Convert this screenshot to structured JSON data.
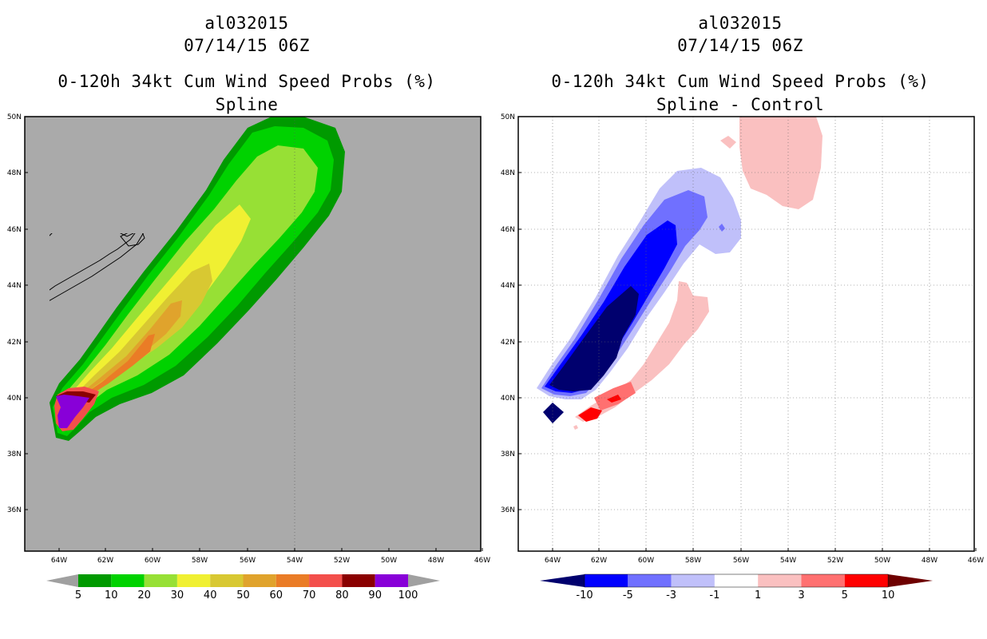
{
  "left_panel": {
    "title_line1": "al032015",
    "title_line2": "07/14/15 06Z",
    "title_line3": "0-120h 34kt Cum Wind Speed Probs (%)",
    "title_line4": "Spline"
  },
  "right_panel": {
    "title_line1": "al032015",
    "title_line2": "07/14/15 06Z",
    "title_line3": "0-120h 34kt Cum Wind Speed Probs (%)",
    "title_line4": "Spline - Control"
  },
  "axes": {
    "lat_labels": [
      "50N",
      "48N",
      "46N",
      "44N",
      "42N",
      "40N",
      "38N",
      "36N"
    ],
    "lon_labels": [
      "64W",
      "62W",
      "60W",
      "58W",
      "56W",
      "54W",
      "52W",
      "50W",
      "48W",
      "46W"
    ]
  },
  "left_colorbar": {
    "labels": [
      "5",
      "10",
      "20",
      "30",
      "40",
      "50",
      "60",
      "70",
      "80",
      "90",
      "100"
    ],
    "colors": [
      "#a0a0a0",
      "#009a00",
      "#00d200",
      "#97e035",
      "#f0f032",
      "#d8c832",
      "#e0a32c",
      "#ea7c26",
      "#f34f4b",
      "#8a0000",
      "#8800d8",
      "#a0a0a0"
    ]
  },
  "right_colorbar": {
    "labels": [
      "-10",
      "-5",
      "-3",
      "-1",
      "1",
      "3",
      "5",
      "10"
    ],
    "colors": [
      "#00006e",
      "#0000ff",
      "#7070ff",
      "#c0c0fa",
      "#ffffff",
      "#fac0c0",
      "#ff7070",
      "#ff0000",
      "#6e0000"
    ]
  },
  "map_colors": {
    "land_background_left": "#aaaaaa",
    "background_right": "#ffffff"
  }
}
